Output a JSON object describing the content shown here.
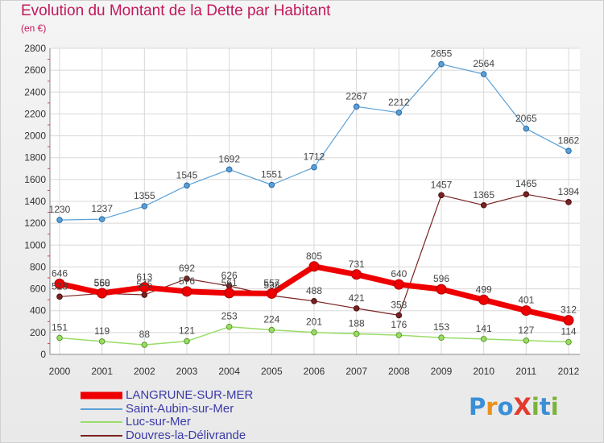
{
  "header": {
    "title": "Evolution du Montant de la Dette par Habitant",
    "subtitle": "(en €)"
  },
  "logo": {
    "text": "ProXiti",
    "letter_colors": [
      "#3a8fd6",
      "#e8921e",
      "#3a8fd6",
      "#e23b2e",
      "#7ab33b",
      "#3a8fd6",
      "#7ab33b"
    ]
  },
  "chart_data": {
    "type": "line",
    "title": "Evolution du Montant de la Dette par Habitant",
    "subtitle": "(en €)",
    "xlabel": "",
    "ylabel": "",
    "x": [
      "2000",
      "2001",
      "2002",
      "2003",
      "2004",
      "2005",
      "2006",
      "2007",
      "2008",
      "2009",
      "2010",
      "2011",
      "2012"
    ],
    "ylim": [
      0,
      2800
    ],
    "yticks": [
      "0",
      "200",
      "400",
      "600",
      "800",
      "1000",
      "1200",
      "1400",
      "1600",
      "1800",
      "2000",
      "2200",
      "2400",
      "2600",
      "2800"
    ],
    "grid": true,
    "legend_position": "bottom-left",
    "series": [
      {
        "name": "LANGRUNE-SUR-MER",
        "color": "#ee0000",
        "values": [
          646,
          560,
          613,
          576,
          561,
          557,
          805,
          731,
          640,
          596,
          499,
          401,
          312
        ],
        "labels": [
          "646",
          "560",
          "613",
          "576",
          "561",
          "557",
          "805",
          "731",
          "640",
          "596",
          "499",
          "401",
          "312"
        ]
      },
      {
        "name": "Saint-Aubin-sur-Mer",
        "color": "#5aa0d6",
        "values": [
          1230,
          1237,
          1355,
          1545,
          1692,
          1551,
          1712,
          2267,
          2212,
          2655,
          2564,
          2065,
          1862
        ],
        "labels": [
          "1230",
          "1237",
          "1355",
          "1545",
          "1692",
          "1551",
          "1712",
          "2267",
          "2212",
          "2655",
          "2564",
          "2065",
          "1862"
        ]
      },
      {
        "name": "Luc-sur-Mer",
        "color": "#99dd66",
        "values": [
          151,
          119,
          88,
          121,
          253,
          224,
          201,
          188,
          176,
          153,
          141,
          127,
          114
        ],
        "labels": [
          "151",
          "119",
          "88",
          "121",
          "253",
          "224",
          "201",
          "188",
          "176",
          "153",
          "141",
          "127",
          "114"
        ]
      },
      {
        "name": "Douvres-la-Délivrande",
        "color": "#7a2222",
        "values": [
          528,
          558,
          545,
          692,
          626,
          538,
          488,
          421,
          358,
          1457,
          1365,
          1465,
          1394
        ],
        "labels": [
          "528",
          "558",
          "545",
          "692",
          "626",
          "538",
          "488",
          "421",
          "358",
          "1457",
          "1365",
          "1465",
          "1394"
        ]
      }
    ]
  }
}
